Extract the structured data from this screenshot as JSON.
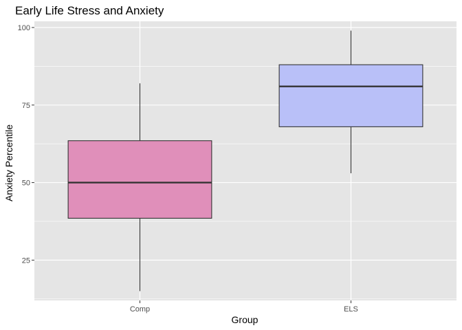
{
  "chart_data": {
    "type": "boxplot",
    "title": "Early Life Stress and Anxiety",
    "xlabel": "Group",
    "ylabel": "Anxiety Percentile",
    "ylim": [
      12,
      102
    ],
    "yticks": [
      25,
      50,
      75,
      100
    ],
    "grid": true,
    "legend": "none",
    "categories": [
      "Comp",
      "ELS"
    ],
    "boxes": [
      {
        "category": "Comp",
        "min": 15,
        "q1": 38.5,
        "median": 50,
        "q3": 63.5,
        "max": 82,
        "fill": "#e08fba"
      },
      {
        "category": "ELS",
        "min": 53,
        "q1": 68,
        "median": 81,
        "q3": 88,
        "max": 99,
        "fill": "#b9c0f8"
      }
    ]
  },
  "colors": {
    "panel_background": "#e5e5e5",
    "gridline": "#ffffff",
    "box_outline": "#333333"
  }
}
